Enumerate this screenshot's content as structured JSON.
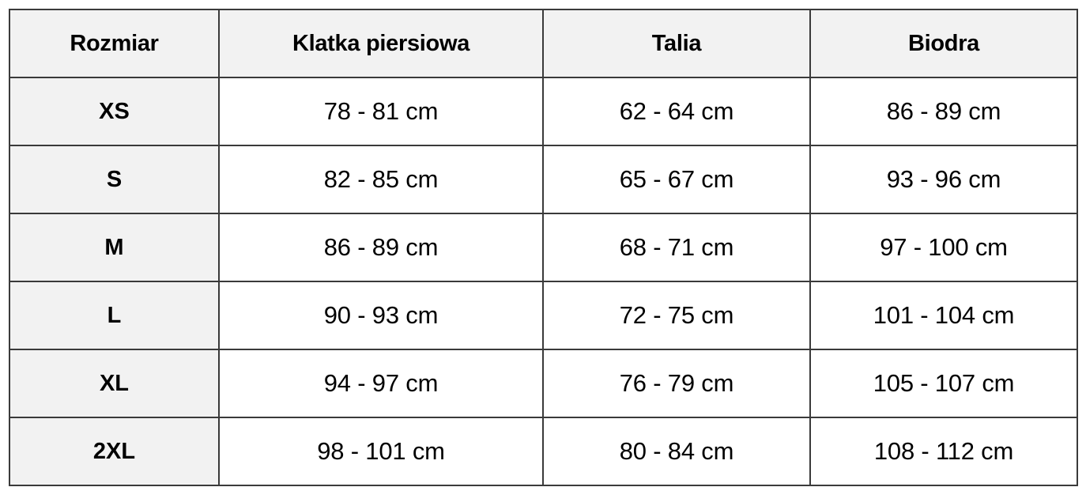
{
  "table": {
    "headers": [
      "Rozmiar",
      "Klatka piersiowa",
      "Talia",
      "Biodra"
    ],
    "rows": [
      {
        "size": "XS",
        "chest": "78 - 81 cm",
        "waist": "62 - 64 cm",
        "hips": "86 - 89 cm"
      },
      {
        "size": "S",
        "chest": "82 - 85 cm",
        "waist": "65 - 67 cm",
        "hips": "93 - 96 cm"
      },
      {
        "size": "M",
        "chest": "86 - 89 cm",
        "waist": "68 - 71 cm",
        "hips": "97 - 100 cm"
      },
      {
        "size": "L",
        "chest": "90 - 93 cm",
        "waist": "72 - 75 cm",
        "hips": "101 - 104 cm"
      },
      {
        "size": "XL",
        "chest": "94 - 97 cm",
        "waist": "76 - 79 cm",
        "hips": "105 - 107 cm"
      },
      {
        "size": "2XL",
        "chest": "98 - 101 cm",
        "waist": "80 - 84 cm",
        "hips": "108 - 112 cm"
      }
    ]
  },
  "colors": {
    "header_background": "#f2f2f2",
    "cell_background": "#ffffff",
    "border": "#3a3a3a",
    "text": "#000000"
  }
}
